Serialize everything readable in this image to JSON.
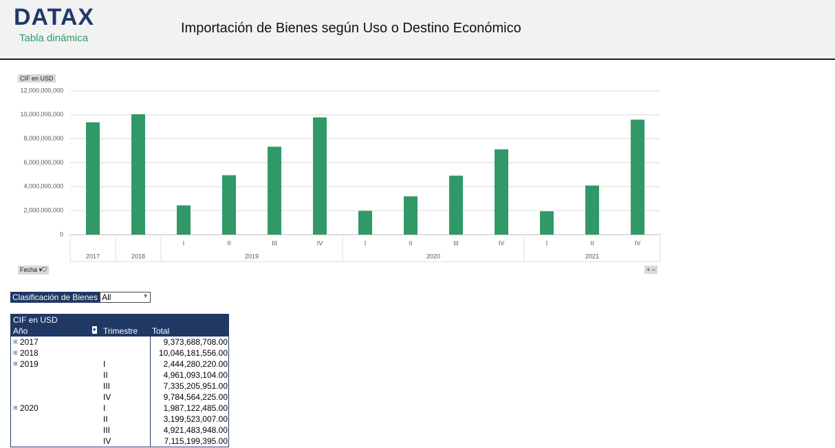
{
  "header": {
    "logo": "DATAX",
    "subtitle": "Tabla dinámica",
    "title": "Importación de Bienes según Uso o Destino Económico"
  },
  "chart_data": {
    "type": "bar",
    "value_field": "CIF en USD",
    "axis_field": "Fecha",
    "color": "#319968",
    "grid": true,
    "categories": [
      null,
      null,
      "I",
      "II",
      "III",
      "IV",
      "I",
      "II",
      "III",
      "IV",
      "I",
      "II",
      "IV"
    ],
    "category_groups": [
      "2017",
      "2018",
      "2019",
      "2019",
      "2019",
      "2019",
      "2020",
      "2020",
      "2020",
      "2020",
      "2021",
      "2021",
      "2021"
    ],
    "values": [
      9373688708,
      10046181556,
      2444280220,
      4961093104,
      7335205951,
      9784564225,
      1987122485,
      3199523007,
      4921483948,
      7115199395,
      1950000000,
      4100000000,
      9600000000
    ],
    "ylim": [
      0,
      12000000000
    ],
    "yticks": [
      0,
      {
        "value": 2000000000,
        "label": "2,000,000,000"
      },
      {
        "value": 4000000000,
        "label": "4,000,000,000"
      },
      {
        "value": 6000000000,
        "label": "6,000,000,000"
      },
      {
        "value": 8000000000,
        "label": "8,000,000,000"
      },
      {
        "value": 10000000000,
        "label": "10,000,000,000"
      },
      {
        "value": 12000000000,
        "label": "12,000,000,000"
      }
    ]
  },
  "filter": {
    "label": "Clasificación de Bienes",
    "value": "All"
  },
  "table": {
    "measure": "CIF en USD",
    "headers": [
      "Año",
      "Trimestre",
      "Total"
    ],
    "rows": [
      [
        "2017",
        null,
        "9,373,688,708.00"
      ],
      [
        "2018",
        null,
        "10,046,181,556.00"
      ],
      [
        "2019",
        "I",
        "2,444,280,220.00"
      ],
      [
        null,
        "II",
        "4,961,093,104.00"
      ],
      [
        null,
        "III",
        "7,335,205,951.00"
      ],
      [
        null,
        "IV",
        "9,784,564,225.00"
      ],
      [
        "2020",
        "I",
        "1,987,122,485.00"
      ],
      [
        null,
        "II",
        "3,199,523,007.00"
      ],
      [
        null,
        "III",
        "4,921,483,948.00"
      ],
      [
        null,
        "IV",
        "7,115,199,395.00"
      ]
    ]
  }
}
